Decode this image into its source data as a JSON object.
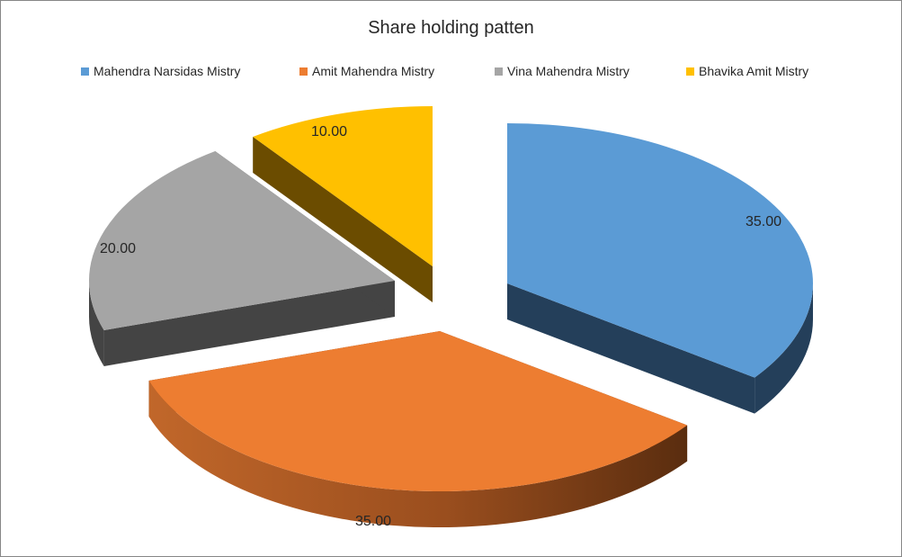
{
  "chart_data": {
    "type": "pie",
    "title": "Share holding patten",
    "legend_position": "top",
    "categories": [
      "Mahendra  Narsidas Mistry",
      "Amit Mahendra  Mistry",
      "Vina Mahendra  Mistry",
      "Bhavika Amit  Mistry"
    ],
    "values": [
      35,
      35,
      20,
      10
    ],
    "data_labels": [
      "35.00",
      "35.00",
      "20.00",
      "10.00"
    ],
    "colors": [
      "#5B9BD5",
      "#ED7D31",
      "#A5A5A5",
      "#FFC000"
    ],
    "side_colors": [
      "#243F5A",
      "#6B3513",
      "#444444",
      "#6B4C00"
    ],
    "style": "3d-exploded"
  }
}
